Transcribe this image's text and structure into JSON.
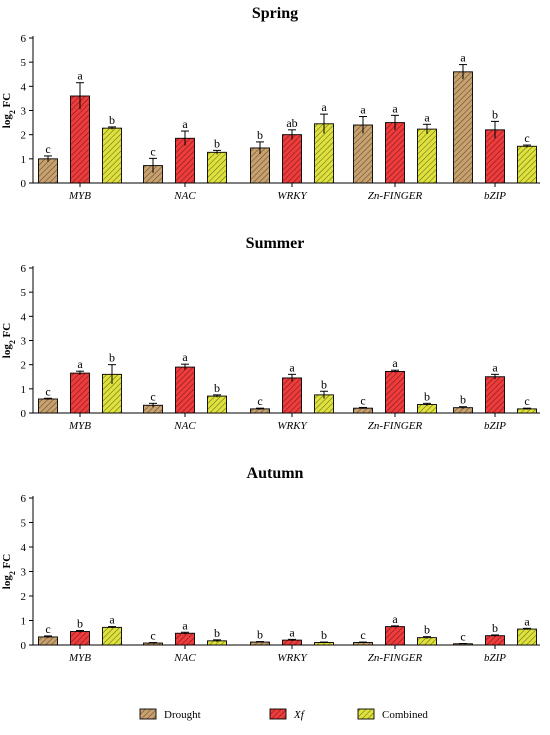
{
  "colors": {
    "drought": "#c8a16e",
    "xf": "#ef3b3b",
    "combined": "#dfe23c"
  },
  "legend": {
    "items": [
      {
        "label": "Drought",
        "color_key": "drought",
        "italic": false
      },
      {
        "label": "Xf",
        "color_key": "xf",
        "italic": true
      },
      {
        "label": "Combined",
        "color_key": "combined",
        "italic": false
      }
    ]
  },
  "chart_data": [
    {
      "type": "bar",
      "title": "Spring",
      "ylabel": "log2 FC",
      "ylim": [
        0,
        6
      ],
      "yticks": [
        0,
        1,
        2,
        3,
        4,
        5,
        6
      ],
      "categories": [
        "MYB",
        "NAC",
        "WRKY",
        "Zn-FINGER",
        "bZIP"
      ],
      "series": [
        {
          "name": "Drought",
          "values": [
            1.0,
            0.72,
            1.45,
            2.4,
            4.6
          ],
          "errors": [
            0.12,
            0.3,
            0.25,
            0.35,
            0.3
          ],
          "letters": [
            "c",
            "c",
            "b",
            "a",
            "a"
          ]
        },
        {
          "name": "Xf",
          "values": [
            3.6,
            1.85,
            2.0,
            2.5,
            2.2
          ],
          "errors": [
            0.55,
            0.3,
            0.2,
            0.3,
            0.35
          ],
          "letters": [
            "a",
            "a",
            "ab",
            "a",
            "b"
          ]
        },
        {
          "name": "Combined",
          "values": [
            2.27,
            1.27,
            2.45,
            2.23,
            1.52
          ],
          "errors": [
            0.05,
            0.08,
            0.4,
            0.2,
            0.05
          ],
          "letters": [
            "b",
            "b",
            "a",
            "a",
            "c"
          ]
        }
      ]
    },
    {
      "type": "bar",
      "title": "Summer",
      "ylabel": "log2 FC",
      "ylim": [
        0,
        6
      ],
      "yticks": [
        0,
        1,
        2,
        3,
        4,
        5,
        6
      ],
      "categories": [
        "MYB",
        "NAC",
        "WRKY",
        "Zn-FINGER",
        "bZIP"
      ],
      "series": [
        {
          "name": "Drought",
          "values": [
            0.58,
            0.32,
            0.17,
            0.2,
            0.22
          ],
          "errors": [
            0.03,
            0.08,
            0.03,
            0.03,
            0.04
          ],
          "letters": [
            "c",
            "c",
            "c",
            "c",
            "b"
          ]
        },
        {
          "name": "Xf",
          "values": [
            1.65,
            1.9,
            1.45,
            1.72,
            1.5
          ],
          "errors": [
            0.08,
            0.12,
            0.15,
            0.05,
            0.1
          ],
          "letters": [
            "a",
            "a",
            "a",
            "a",
            "a"
          ]
        },
        {
          "name": "Combined",
          "values": [
            1.6,
            0.7,
            0.75,
            0.35,
            0.17
          ],
          "errors": [
            0.4,
            0.05,
            0.15,
            0.05,
            0.03
          ],
          "letters": [
            "b",
            "b",
            "b",
            "b",
            "c"
          ]
        }
      ]
    },
    {
      "type": "bar",
      "title": "Autumn",
      "ylabel": "log2 FC",
      "ylim": [
        0,
        6
      ],
      "yticks": [
        0,
        1,
        2,
        3,
        4,
        5,
        6
      ],
      "categories": [
        "MYB",
        "NAC",
        "WRKY",
        "Zn-FINGER",
        "bZIP"
      ],
      "series": [
        {
          "name": "Drought",
          "values": [
            0.33,
            0.08,
            0.12,
            0.1,
            0.05
          ],
          "errors": [
            0.04,
            0.02,
            0.02,
            0.02,
            0.01
          ],
          "letters": [
            "c",
            "c",
            "b",
            "c",
            "c"
          ]
        },
        {
          "name": "Xf",
          "values": [
            0.55,
            0.48,
            0.2,
            0.75,
            0.38
          ],
          "errors": [
            0.04,
            0.04,
            0.03,
            0.03,
            0.03
          ],
          "letters": [
            "b",
            "a",
            "a",
            "a",
            "b"
          ]
        },
        {
          "name": "Combined",
          "values": [
            0.72,
            0.17,
            0.1,
            0.3,
            0.65
          ],
          "errors": [
            0.03,
            0.04,
            0.02,
            0.04,
            0.03
          ],
          "letters": [
            "a",
            "b",
            "b",
            "b",
            "a"
          ]
        }
      ]
    }
  ]
}
